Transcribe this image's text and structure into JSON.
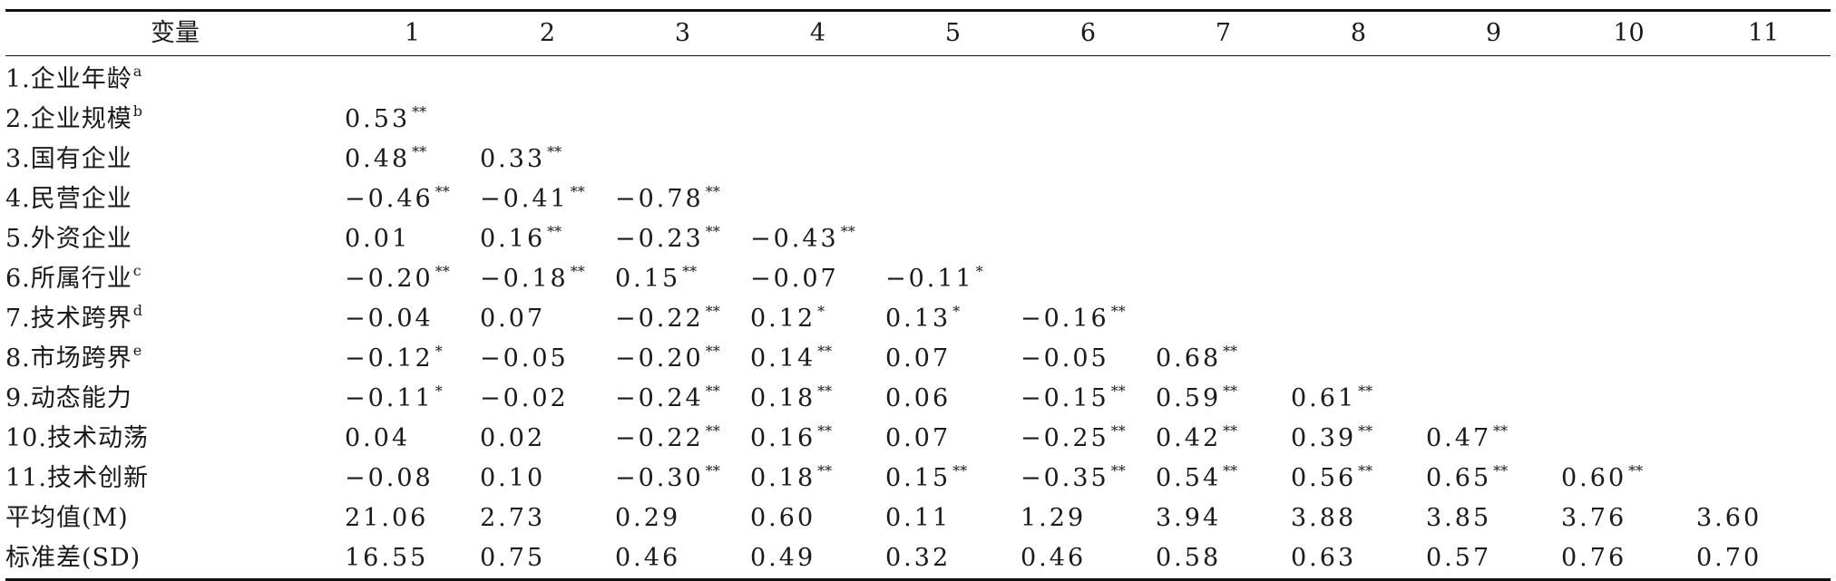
{
  "table": {
    "header": [
      "变量",
      "1",
      "2",
      "3",
      "4",
      "5",
      "6",
      "7",
      "8",
      "9",
      "10",
      "11"
    ],
    "rows": [
      {
        "label": "1.企业年龄",
        "sup": "a",
        "cells": []
      },
      {
        "label": "2.企业规模",
        "sup": "b",
        "cells": [
          [
            "0.53",
            "**"
          ]
        ]
      },
      {
        "label": "3.国有企业",
        "sup": "",
        "cells": [
          [
            "0.48",
            "**"
          ],
          [
            "0.33",
            "**"
          ]
        ]
      },
      {
        "label": "4.民营企业",
        "sup": "",
        "cells": [
          [
            "−0.46",
            "**"
          ],
          [
            "−0.41",
            "**"
          ],
          [
            "−0.78",
            "**"
          ]
        ]
      },
      {
        "label": "5.外资企业",
        "sup": "",
        "cells": [
          [
            "0.01",
            ""
          ],
          [
            "0.16",
            "**"
          ],
          [
            "−0.23",
            "**"
          ],
          [
            "−0.43",
            "**"
          ]
        ]
      },
      {
        "label": "6.所属行业",
        "sup": "c",
        "cells": [
          [
            "−0.20",
            "**"
          ],
          [
            "−0.18",
            "**"
          ],
          [
            "0.15",
            "**"
          ],
          [
            "−0.07",
            ""
          ],
          [
            "−0.11",
            "*"
          ]
        ]
      },
      {
        "label": "7.技术跨界",
        "sup": "d",
        "cells": [
          [
            "−0.04",
            ""
          ],
          [
            "0.07",
            ""
          ],
          [
            "−0.22",
            "**"
          ],
          [
            "0.12",
            "*"
          ],
          [
            "0.13",
            "*"
          ],
          [
            "−0.16",
            "**"
          ]
        ]
      },
      {
        "label": "8.市场跨界",
        "sup": "e",
        "cells": [
          [
            "−0.12",
            "*"
          ],
          [
            "−0.05",
            ""
          ],
          [
            "−0.20",
            "**"
          ],
          [
            "0.14",
            "**"
          ],
          [
            "0.07",
            ""
          ],
          [
            "−0.05",
            ""
          ],
          [
            "0.68",
            "**"
          ]
        ]
      },
      {
        "label": "9.动态能力",
        "sup": "",
        "cells": [
          [
            "−0.11",
            "*"
          ],
          [
            "−0.02",
            ""
          ],
          [
            "−0.24",
            "**"
          ],
          [
            "0.18",
            "**"
          ],
          [
            "0.06",
            ""
          ],
          [
            "−0.15",
            "**"
          ],
          [
            "0.59",
            "**"
          ],
          [
            "0.61",
            "**"
          ]
        ]
      },
      {
        "label": "10.技术动荡",
        "sup": "",
        "cells": [
          [
            "0.04",
            ""
          ],
          [
            "0.02",
            ""
          ],
          [
            "−0.22",
            "**"
          ],
          [
            "0.16",
            "**"
          ],
          [
            "0.07",
            ""
          ],
          [
            "−0.25",
            "**"
          ],
          [
            "0.42",
            "**"
          ],
          [
            "0.39",
            "**"
          ],
          [
            "0.47",
            "**"
          ]
        ]
      },
      {
        "label": "11.技术创新",
        "sup": "",
        "cells": [
          [
            "−0.08",
            ""
          ],
          [
            "0.10",
            ""
          ],
          [
            "−0.30",
            "**"
          ],
          [
            "0.18",
            "**"
          ],
          [
            "0.15",
            "**"
          ],
          [
            "−0.35",
            "**"
          ],
          [
            "0.54",
            "**"
          ],
          [
            "0.56",
            "**"
          ],
          [
            "0.65",
            "**"
          ],
          [
            "0.60",
            "**"
          ]
        ]
      },
      {
        "label": "平均值(M)",
        "sup": "",
        "cells": [
          [
            "21.06",
            ""
          ],
          [
            "2.73",
            ""
          ],
          [
            "0.29",
            ""
          ],
          [
            "0.60",
            ""
          ],
          [
            "0.11",
            ""
          ],
          [
            "1.29",
            ""
          ],
          [
            "3.94",
            ""
          ],
          [
            "3.88",
            ""
          ],
          [
            "3.85",
            ""
          ],
          [
            "3.76",
            ""
          ],
          [
            "3.60",
            ""
          ]
        ]
      },
      {
        "label": "标准差(SD)",
        "sup": "",
        "cells": [
          [
            "16.55",
            ""
          ],
          [
            "0.75",
            ""
          ],
          [
            "0.46",
            ""
          ],
          [
            "0.49",
            ""
          ],
          [
            "0.32",
            ""
          ],
          [
            "0.46",
            ""
          ],
          [
            "0.58",
            ""
          ],
          [
            "0.63",
            ""
          ],
          [
            "0.57",
            ""
          ],
          [
            "0.76",
            ""
          ],
          [
            "0.70",
            ""
          ]
        ]
      }
    ]
  }
}
